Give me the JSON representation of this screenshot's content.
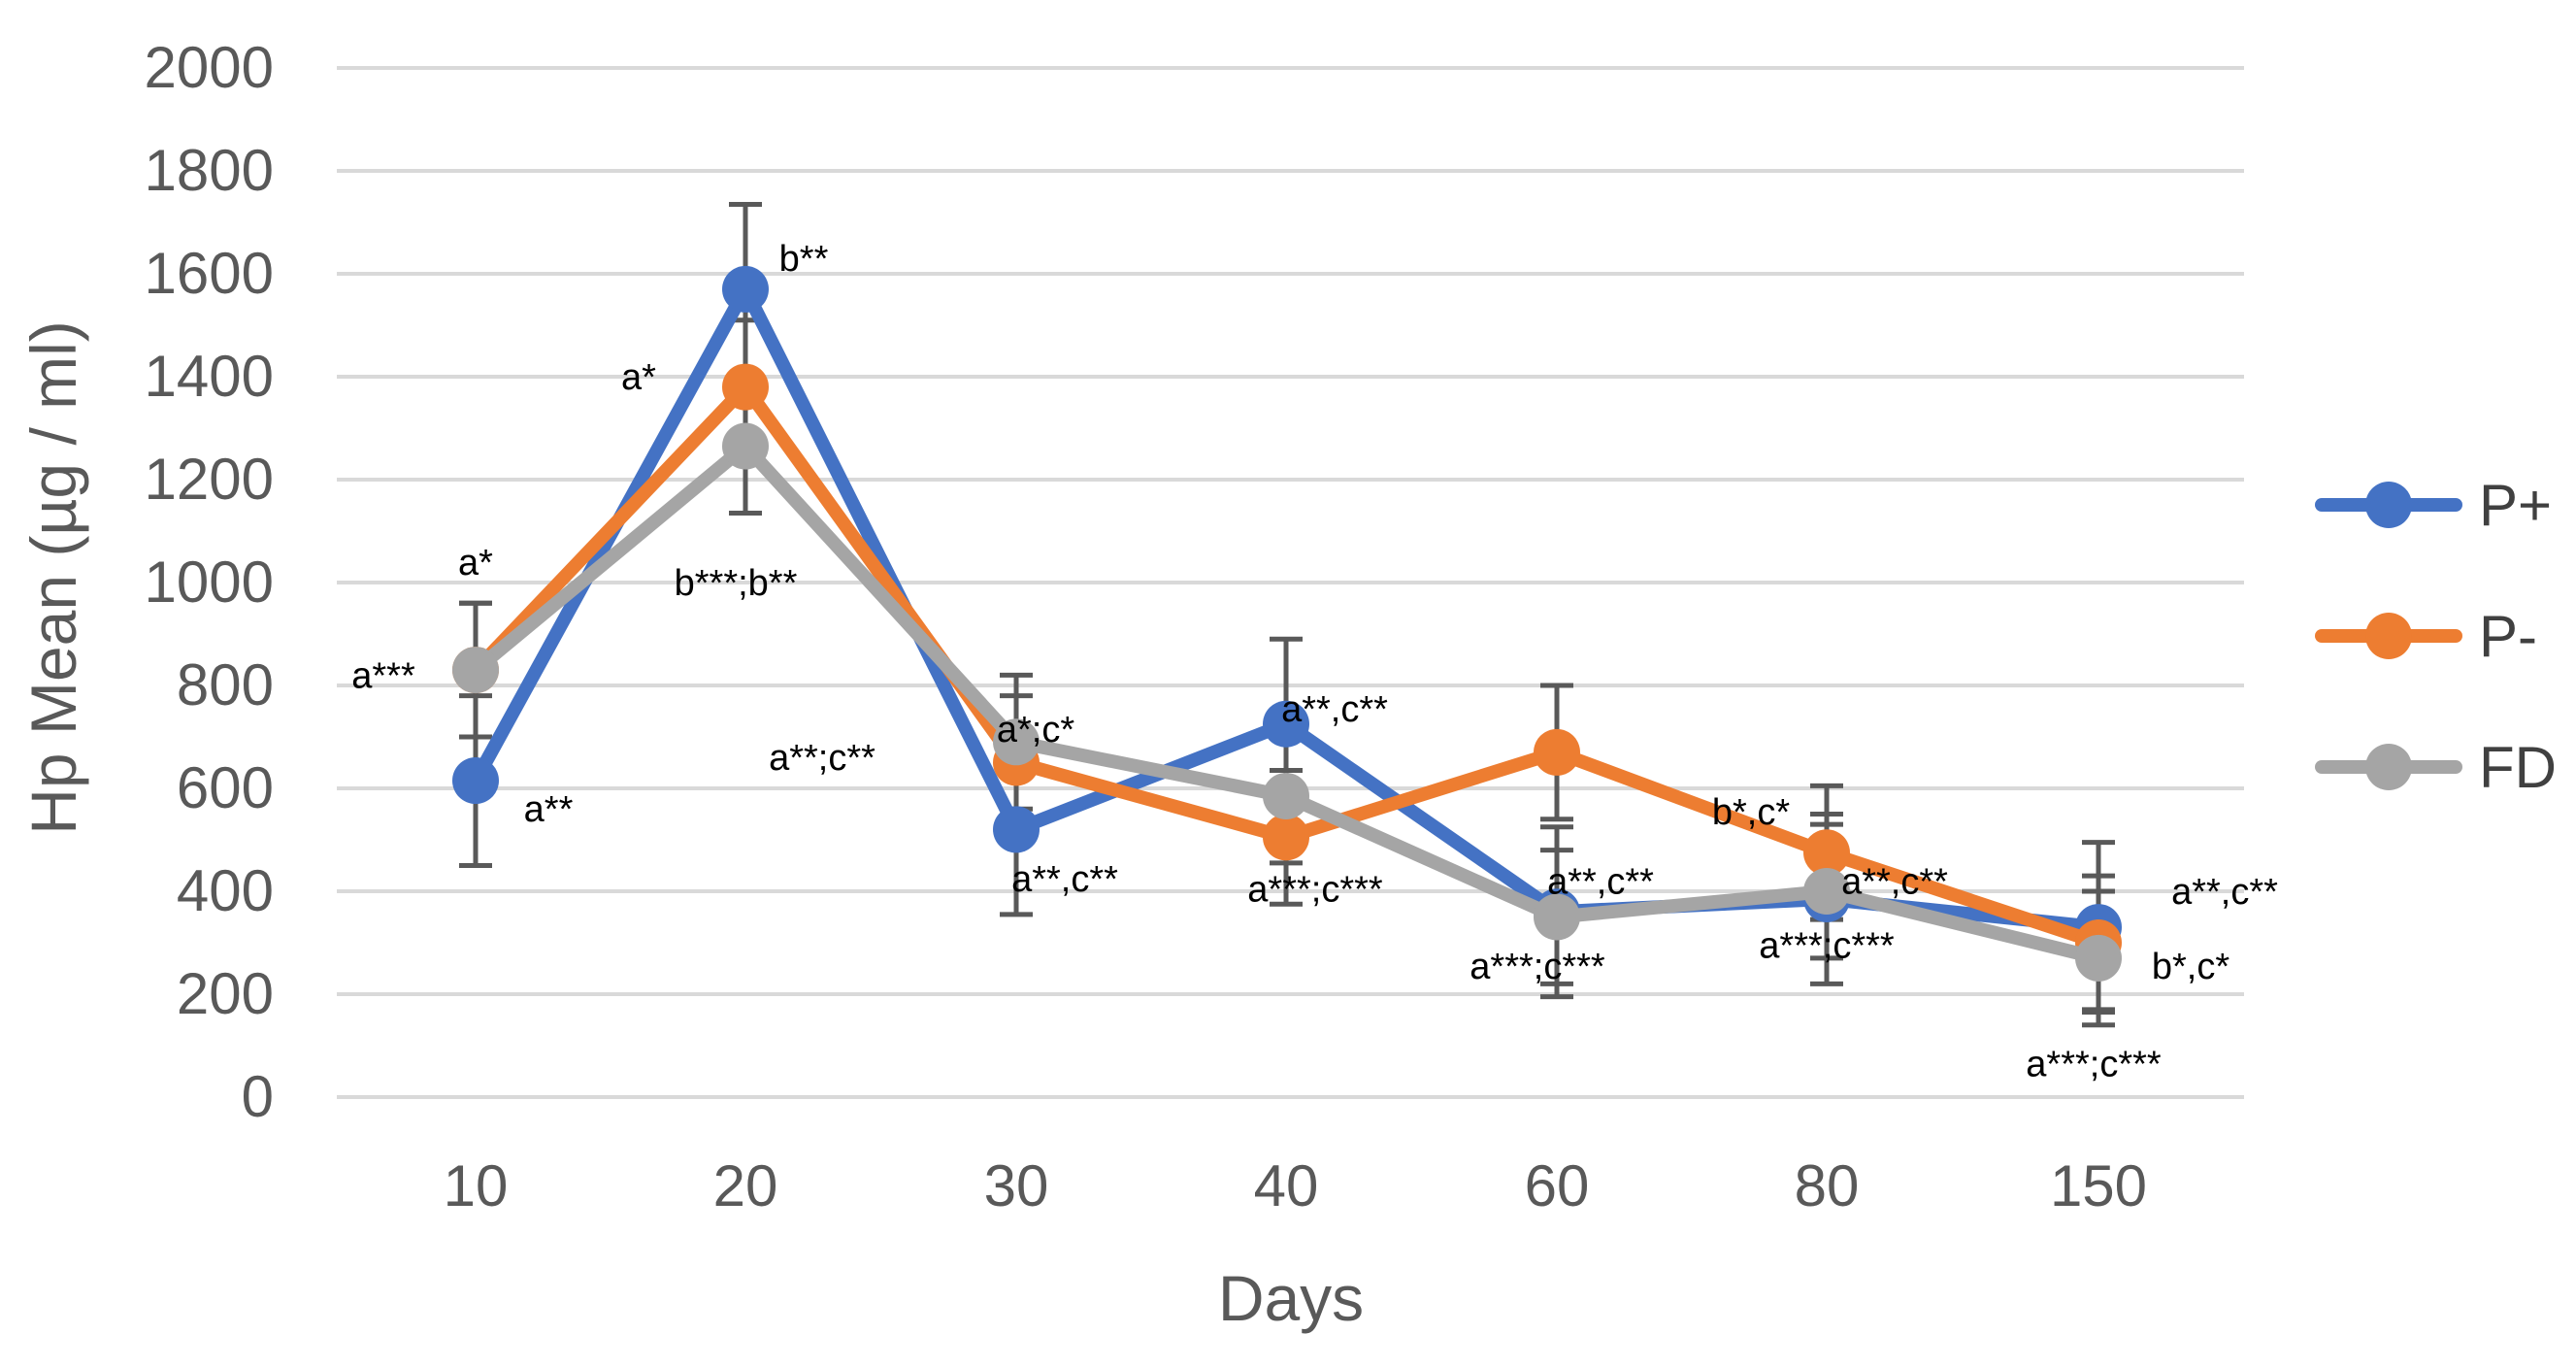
{
  "chart_data": {
    "type": "line",
    "title": "",
    "xlabel": "Days",
    "ylabel": "Hp Mean (µg / ml)",
    "categories": [
      "10",
      "20",
      "30",
      "40",
      "60",
      "80",
      "150"
    ],
    "ylim": [
      0,
      2000
    ],
    "yticks": [
      0,
      200,
      400,
      600,
      800,
      1000,
      1200,
      1400,
      1600,
      1800,
      2000
    ],
    "grid": true,
    "legend_position": "right",
    "series": [
      {
        "name": "P+",
        "color": "#4472c4",
        "values": [
          615,
          1570,
          520,
          725,
          360,
          385,
          330
        ],
        "error": [
          165,
          165,
          165,
          165,
          165,
          165,
          165
        ]
      },
      {
        "name": "P-",
        "color": "#ed7d31",
        "values": [
          830,
          1380,
          650,
          505,
          670,
          475,
          300
        ],
        "error": [
          130,
          130,
          130,
          130,
          130,
          130,
          130
        ]
      },
      {
        "name": "FD",
        "color": "#a5a5a5",
        "values": [
          830,
          1265,
          690,
          585,
          350,
          400,
          270
        ],
        "error": [
          130,
          130,
          130,
          130,
          130,
          130,
          130
        ]
      }
    ],
    "annotations": [
      {
        "text": "a*",
        "cat": 0,
        "value": 1040
      },
      {
        "text": "a***",
        "cat": 0,
        "value": 820,
        "dx": -95
      },
      {
        "text": "a**",
        "cat": 0,
        "value": 560,
        "dx": 75
      },
      {
        "text": "b**",
        "cat": 1,
        "value": 1630,
        "dx": 60
      },
      {
        "text": "a*",
        "cat": 1,
        "value": 1400,
        "dx": -110
      },
      {
        "text": "b***;b**",
        "cat": 1,
        "value": 1000,
        "dx": -10
      },
      {
        "text": "a*;c*",
        "cat": 2,
        "value": 715,
        "dx": 20
      },
      {
        "text": "a**;c**",
        "cat": 2,
        "value": 660,
        "dx": -200
      },
      {
        "text": "a**,c**",
        "cat": 2,
        "value": 425,
        "dx": 50
      },
      {
        "text": "a**,c**",
        "cat": 3,
        "value": 755,
        "dx": 50
      },
      {
        "text": "a***;c***",
        "cat": 3,
        "value": 405,
        "dx": 30
      },
      {
        "text": "b*,c*",
        "cat": 4,
        "value": 555,
        "dx": 200
      },
      {
        "text": "a**,c**",
        "cat": 4,
        "value": 420,
        "dx": 45
      },
      {
        "text": "a***;c***",
        "cat": 4,
        "value": 255,
        "dx": -20
      },
      {
        "text": "a**,c**",
        "cat": 5,
        "value": 420,
        "dx": 70
      },
      {
        "text": "a***;c***",
        "cat": 5,
        "value": 295,
        "dx": 0
      },
      {
        "text": "a**,c**",
        "cat": 6,
        "value": 400,
        "dx": 130
      },
      {
        "text": "b*,c*",
        "cat": 6,
        "value": 255,
        "dx": 95
      },
      {
        "text": "a***;c***",
        "cat": 6,
        "value": 65,
        "dx": -5
      }
    ]
  }
}
